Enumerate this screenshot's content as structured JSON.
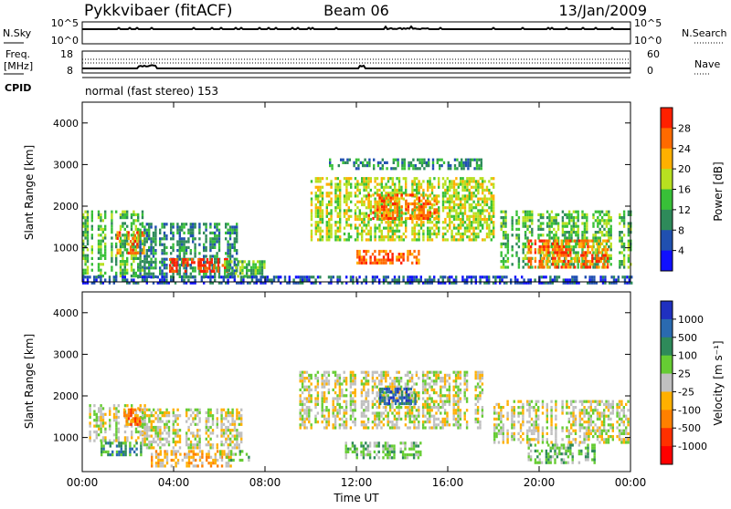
{
  "header": {
    "title": "Pykkvibaer (fitACF)",
    "beam": "Beam 06",
    "date": "13/Jan/2009"
  },
  "top_panels": {
    "nsky_label": "N.Sky",
    "nsky_ticks": [
      "10^5",
      "10^0"
    ],
    "nsearch_label": "N.Search",
    "nsearch_ticks": [
      "10^5",
      "10^0"
    ],
    "freq_label_1": "Freq.",
    "freq_label_2": "[MHz]",
    "freq_ticks": [
      "18",
      "8"
    ],
    "nave_label": "Nave",
    "nave_ticks": [
      "60",
      "0"
    ],
    "cpid_label": "CPID",
    "cpid_text": "normal (fast stereo) 153"
  },
  "chart_data": [
    {
      "type": "heatmap",
      "name": "power",
      "ylabel": "Slant Range [km]",
      "ylim": [
        180,
        4500
      ],
      "yticks": [
        1000,
        2000,
        3000,
        4000
      ],
      "xlim": [
        0,
        24
      ],
      "colorbar_label": "Power [dB]",
      "colorbar_ticks": [
        "4",
        "8",
        "12",
        "16",
        "20",
        "24",
        "28"
      ],
      "colorbar_colors": [
        "#1010ff",
        "#2050b0",
        "#2e8a5a",
        "#38c038",
        "#b8e020",
        "#ffb000",
        "#ff6a00",
        "#ff2000"
      ],
      "echo_regions": [
        {
          "t0": 0.0,
          "t1": 2.7,
          "r0": 300,
          "r1": 1900,
          "level": 3
        },
        {
          "t0": 1.5,
          "t1": 2.7,
          "r0": 900,
          "r1": 1400,
          "level": 6
        },
        {
          "t0": 2.4,
          "t1": 6.8,
          "r0": 300,
          "r1": 1600,
          "level": 2
        },
        {
          "t0": 3.8,
          "t1": 6.4,
          "r0": 420,
          "r1": 750,
          "level": 7
        },
        {
          "t0": 6.2,
          "t1": 8.0,
          "r0": 300,
          "r1": 700,
          "level": 3
        },
        {
          "t0": 9.8,
          "t1": 18.0,
          "r0": 1200,
          "r1": 2700,
          "level": 4
        },
        {
          "t0": 12.5,
          "t1": 15.5,
          "r0": 1700,
          "r1": 2300,
          "level": 6
        },
        {
          "t0": 12.0,
          "t1": 14.8,
          "r0": 650,
          "r1": 950,
          "level": 6
        },
        {
          "t0": 10.8,
          "t1": 17.5,
          "r0": 2900,
          "r1": 3150,
          "level": 2
        },
        {
          "t0": 18.3,
          "t1": 24.0,
          "r0": 500,
          "r1": 1900,
          "level": 3
        },
        {
          "t0": 19.5,
          "t1": 23.0,
          "r0": 500,
          "r1": 1200,
          "level": 6
        },
        {
          "t0": 0.0,
          "t1": 24.0,
          "r0": 180,
          "r1": 330,
          "level": 1
        }
      ]
    },
    {
      "type": "heatmap",
      "name": "velocity",
      "ylabel": "Slant Range [km]",
      "ylim": [
        180,
        4500
      ],
      "yticks": [
        1000,
        2000,
        3000,
        4000
      ],
      "xlim": [
        0,
        24
      ],
      "xlabel": "Time UT",
      "xticks": [
        "00:00",
        "04:00",
        "08:00",
        "12:00",
        "16:00",
        "20:00",
        "00:00"
      ],
      "colorbar_label": "Velocity [m s⁻¹]",
      "colorbar_ticks": [
        "1000",
        "500",
        "100",
        "25",
        "-25",
        "-100",
        "-500",
        "-1000"
      ],
      "colorbar_colors": [
        "#2030c0",
        "#2a6ab0",
        "#2e8a5a",
        "#66cc33",
        "#c0c0c0",
        "#ffb000",
        "#ff8000",
        "#ff3000",
        "#ff0000"
      ],
      "echo_regions": [
        {
          "t0": 0.2,
          "t1": 2.8,
          "r0": 900,
          "r1": 1800,
          "level": 4
        },
        {
          "t0": 0.8,
          "t1": 2.6,
          "r0": 600,
          "r1": 900,
          "level": 2
        },
        {
          "t0": 1.8,
          "t1": 2.6,
          "r0": 1300,
          "r1": 1700,
          "level": 6
        },
        {
          "t0": 3.0,
          "t1": 6.5,
          "r0": 330,
          "r1": 700,
          "level": 5
        },
        {
          "t0": 2.6,
          "t1": 7.0,
          "r0": 750,
          "r1": 1700,
          "level": 4
        },
        {
          "t0": 6.0,
          "t1": 7.5,
          "r0": 450,
          "r1": 700,
          "level": 3
        },
        {
          "t0": 9.5,
          "t1": 17.5,
          "r0": 1200,
          "r1": 2600,
          "level": 4
        },
        {
          "t0": 11.5,
          "t1": 14.8,
          "r0": 500,
          "r1": 900,
          "level": 3
        },
        {
          "t0": 13.0,
          "t1": 14.6,
          "r0": 1800,
          "r1": 2200,
          "level": 1
        },
        {
          "t0": 18.0,
          "t1": 24.0,
          "r0": 900,
          "r1": 1900,
          "level": 4
        },
        {
          "t0": 19.5,
          "t1": 22.5,
          "r0": 400,
          "r1": 850,
          "level": 3
        }
      ]
    }
  ]
}
